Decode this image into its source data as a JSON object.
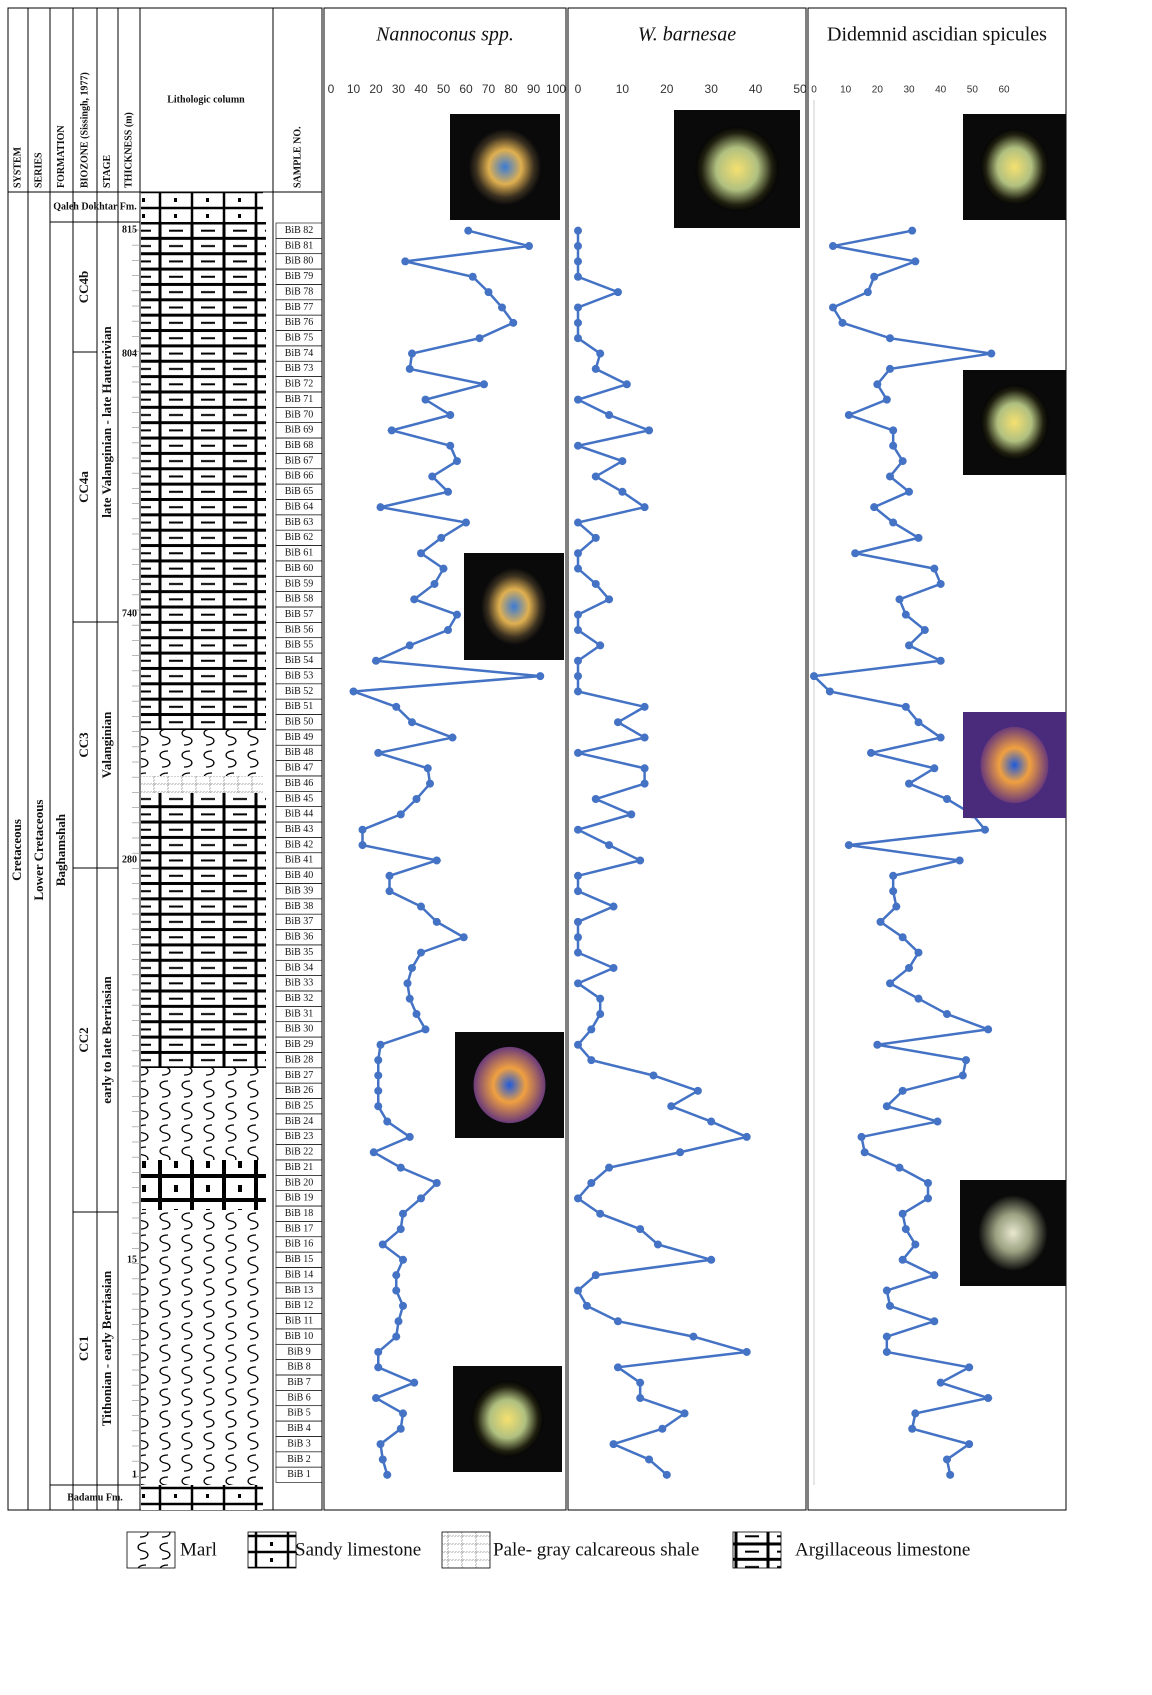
{
  "column": {
    "headers": [
      "SYSTEM",
      "SERIES",
      "FORMATION",
      "BIOZONE (Sissingh, 1977)",
      "STAGE",
      "THICKNESS (m)",
      "Lithologic column",
      "SAMPLE NO."
    ],
    "system": "Cretaceous",
    "series": "Lower Cretaceous",
    "formation": "Baghamshah",
    "upper_formation": "Qaleh Dokhtar Fm.",
    "lower_formation": "Badamu Fm.",
    "biozones": [
      "CC4b",
      "CC4a",
      "CC3",
      "CC2",
      "CC1"
    ],
    "stages": [
      "late Valanginian - late Hauterivian",
      "Valanginian",
      "early to late Berriasian",
      "Tithonian - early Berriasian"
    ],
    "thickness": [
      815,
      804,
      740,
      280,
      15,
      1
    ],
    "samples": [
      "BiB 82",
      "BiB 81",
      "BiB 80",
      "BiB 79",
      "BiB 78",
      "BiB 77",
      "BiB 76",
      "BiB 75",
      "BiB 74",
      "BiB 73",
      "BiB 72",
      "BiB 71",
      "BiB 70",
      "BiB 69",
      "BiB 68",
      "BiB 67",
      "BiB 66",
      "BiB 65",
      "BiB 64",
      "BiB 63",
      "BiB 62",
      "BiB 61",
      "BiB 60",
      "BiB 59",
      "BiB 58",
      "BiB 57",
      "BiB 56",
      "BiB 55",
      "BiB 54",
      "BiB 53",
      "BiB 52",
      "BiB 51",
      "BiB 50",
      "BiB 49",
      "BiB 48",
      "BiB 47",
      "BiB 46",
      "BiB 45",
      "BiB 44",
      "BiB 43",
      "BiB 42",
      "BiB 41",
      "BiB 40",
      "BiB 39",
      "BiB 38",
      "BiB 37",
      "BiB 36",
      "BiB 35",
      "BiB 34",
      "BiB 33",
      "BiB 32",
      "BiB 31",
      "BiB 30",
      "BiB 29",
      "BiB 28",
      "BiB 27",
      "BiB 26",
      "BiB 25",
      "BiB 24",
      "BiB 23",
      "BiB 22",
      "BiB 21",
      "BiB 20",
      "BiB 19",
      "BiB 18",
      "BiB 17",
      "BiB 16",
      "BiB 15",
      "BiB 14",
      "BiB 13",
      "BiB 12",
      "BiB 11",
      "BiB 10",
      "BiB 9",
      "BiB 8",
      "BiB 7",
      "BiB 6",
      "BiB 5",
      "BiB 4",
      "BiB 3",
      "BiB 2",
      "BiB 1"
    ]
  },
  "chart_data": [
    {
      "type": "line",
      "title": "Nannoconus spp.",
      "italic": true,
      "color": "#4472c4",
      "xlim": [
        0,
        100
      ],
      "xticks": [
        0,
        10,
        20,
        30,
        40,
        50,
        60,
        70,
        80,
        90,
        100
      ],
      "values": [
        61,
        88,
        33,
        63,
        70,
        76,
        81,
        66,
        36,
        35,
        68,
        42,
        53,
        27,
        53,
        56,
        45,
        52,
        22,
        60,
        49,
        40,
        50,
        46,
        37,
        56,
        52,
        35,
        20,
        93,
        10,
        29,
        36,
        54,
        21,
        43,
        44,
        38,
        31,
        14,
        14,
        47,
        26,
        26,
        40,
        47,
        59,
        40,
        36,
        34,
        35,
        38,
        42,
        22,
        21,
        21,
        21,
        21,
        25,
        35,
        19,
        31,
        47,
        40,
        32,
        31,
        23,
        32,
        29,
        29,
        32,
        30,
        29,
        21,
        21,
        37,
        20,
        32,
        31,
        22,
        23,
        25
      ]
    },
    {
      "type": "line",
      "title": "W. barnesae",
      "italic": true,
      "color": "#4472c4",
      "xlim": [
        0,
        50
      ],
      "xticks": [
        0,
        10,
        20,
        30,
        40,
        50
      ],
      "values": [
        0,
        0,
        0,
        0,
        9,
        0,
        0,
        0,
        5,
        4,
        11,
        0,
        7,
        16,
        0,
        10,
        4,
        10,
        15,
        0,
        4,
        0,
        0,
        4,
        7,
        0,
        0,
        5,
        0,
        0,
        0,
        15,
        9,
        15,
        0,
        15,
        15,
        4,
        12,
        0,
        7,
        14,
        0,
        0,
        8,
        0,
        0,
        0,
        8,
        0,
        5,
        5,
        3,
        0,
        3,
        17,
        27,
        21,
        30,
        38,
        23,
        7,
        3,
        0,
        5,
        14,
        18,
        30,
        4,
        0,
        2,
        9,
        26,
        38,
        9,
        14,
        14,
        24,
        19,
        8,
        16,
        20
      ]
    },
    {
      "type": "line",
      "title": "Didemnid ascidian spicules",
      "italic": false,
      "color": "#4472c4",
      "axis_line": true,
      "xlim": [
        0,
        60
      ],
      "xticks": [
        0,
        10,
        20,
        30,
        40,
        50,
        60
      ],
      "values": [
        31,
        6,
        32,
        19,
        17,
        6,
        9,
        24,
        56,
        24,
        20,
        23,
        11,
        25,
        25,
        28,
        24,
        30,
        19,
        25,
        33,
        13,
        38,
        40,
        27,
        29,
        35,
        30,
        40,
        0,
        5,
        29,
        33,
        40,
        18,
        38,
        30,
        42,
        50,
        54,
        11,
        46,
        25,
        25,
        26,
        21,
        28,
        33,
        30,
        24,
        33,
        42,
        55,
        20,
        48,
        47,
        28,
        23,
        39,
        15,
        16,
        27,
        36,
        36,
        28,
        29,
        32,
        28,
        38,
        23,
        24,
        38,
        23,
        23,
        49,
        40,
        55,
        32,
        31,
        49,
        42,
        43
      ]
    }
  ],
  "legend": [
    "Marl",
    "Sandy limestone",
    "Pale- gray calcareous shale",
    "Argillaceous limestone"
  ]
}
